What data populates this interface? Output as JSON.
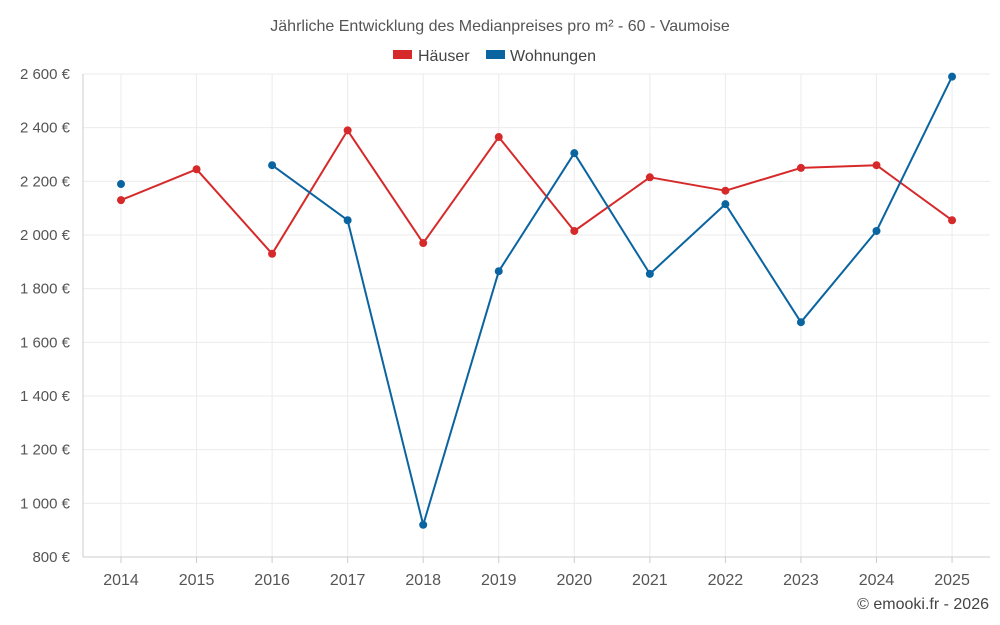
{
  "chart_data": {
    "type": "line",
    "title": "Jährliche Entwicklung des Medianpreises pro m² - 60 - Vaumoise",
    "categories": [
      "2014",
      "2015",
      "2016",
      "2017",
      "2018",
      "2019",
      "2020",
      "2021",
      "2022",
      "2023",
      "2024",
      "2025"
    ],
    "series": [
      {
        "name": "Häuser",
        "color": "#d62a2a",
        "values": [
          2130,
          2245,
          1930,
          2390,
          1970,
          2365,
          2015,
          2215,
          2165,
          2250,
          2260,
          2055
        ]
      },
      {
        "name": "Wohnungen",
        "color": "#0a64a0",
        "values": [
          2190,
          null,
          2260,
          2055,
          920,
          1865,
          2305,
          1855,
          2115,
          1675,
          2015,
          2590
        ]
      }
    ],
    "ylim": [
      800,
      2600
    ],
    "yticks": [
      800,
      1000,
      1200,
      1400,
      1600,
      1800,
      2000,
      2200,
      2400,
      2600
    ],
    "ytick_labels": [
      "800 €",
      "1 000 €",
      "1 200 €",
      "1 400 €",
      "1 600 €",
      "1 800 €",
      "2 000 €",
      "2 200 €",
      "2 400 €",
      "2 600 €"
    ],
    "xlabel": "",
    "ylabel": "",
    "grid": true,
    "legend_position": "top-center"
  },
  "credit": "© emooki.fr - 2026"
}
